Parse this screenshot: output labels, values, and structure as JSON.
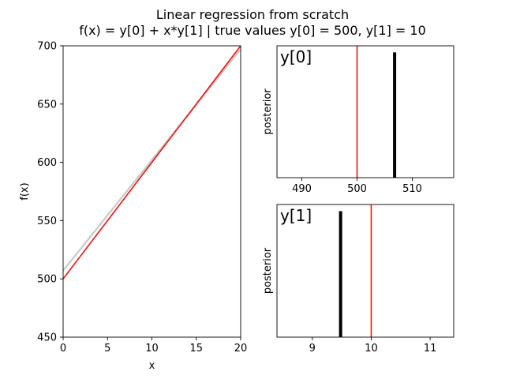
{
  "figure": {
    "title_line1": "Linear regression from scratch",
    "title_line2": "f(x) = y[0] + x*y[1] | true values y[0] = 500, y[1] = 10"
  },
  "colors": {
    "true_line": "#ee1111",
    "posterior_samples": "#c8c8c8",
    "posterior_bar": "#000000",
    "axes": "#000000"
  },
  "chart_data": [
    {
      "type": "line",
      "xlabel": "x",
      "ylabel": "f(x)",
      "xlim": [
        0,
        20
      ],
      "ylim": [
        450,
        700
      ],
      "xticks": [
        0,
        5,
        10,
        15,
        20
      ],
      "yticks": [
        450,
        500,
        550,
        600,
        650,
        700
      ],
      "series": [
        {
          "role": "posterior samples",
          "x": [
            0,
            20
          ],
          "y": [
            507.0,
            697.0
          ]
        },
        {
          "role": "true function",
          "x": [
            0,
            20
          ],
          "y": [
            500,
            700
          ]
        }
      ]
    },
    {
      "type": "bar",
      "panel_label": "y[0]",
      "ylabel": "posterior",
      "xlim": [
        485.5,
        517.5
      ],
      "xticks": [
        490,
        500,
        510
      ],
      "true_value": 500,
      "posterior_samples": [
        506.8
      ],
      "bar_height_fraction": 0.95
    },
    {
      "type": "bar",
      "panel_label": "y[1]",
      "ylabel": "posterior",
      "xlim": [
        8.4,
        11.4
      ],
      "xticks": [
        9,
        10,
        11
      ],
      "true_value": 10,
      "posterior_samples": [
        9.48
      ],
      "bar_height_fraction": 0.95
    }
  ]
}
